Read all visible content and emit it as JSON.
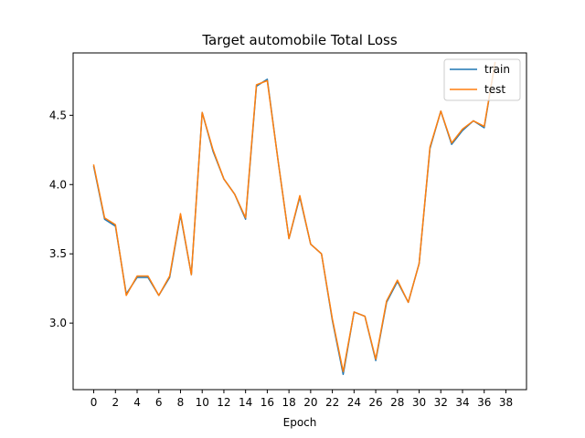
{
  "chart_data": {
    "type": "line",
    "title": "Target automobile Total Loss",
    "xlabel": "Epoch",
    "ylabel": "",
    "xlim": [
      -1.9,
      39.9
    ],
    "ylim": [
      2.52,
      4.95
    ],
    "xticks": [
      0,
      2,
      4,
      6,
      8,
      10,
      12,
      14,
      16,
      18,
      20,
      22,
      24,
      26,
      28,
      30,
      32,
      34,
      36,
      38
    ],
    "yticks": [
      3.0,
      3.5,
      4.0,
      4.5
    ],
    "ytick_labels": [
      "3.0",
      "3.5",
      "4.0",
      "4.5"
    ],
    "legend_position": "top-right",
    "grid": false,
    "x": [
      0,
      1,
      2,
      3,
      4,
      5,
      6,
      7,
      8,
      9,
      10,
      11,
      12,
      13,
      14,
      15,
      16,
      17,
      18,
      19,
      20,
      21,
      22,
      23,
      24,
      25,
      26,
      27,
      28,
      29,
      30,
      31,
      32,
      33,
      34,
      35,
      36,
      37
    ],
    "series": [
      {
        "name": "train",
        "color": "#1f77b4",
        "values": [
          4.13,
          3.75,
          3.7,
          3.21,
          3.33,
          3.33,
          3.2,
          3.33,
          3.78,
          3.35,
          4.52,
          4.24,
          4.04,
          3.93,
          3.75,
          4.71,
          4.76,
          4.17,
          3.61,
          3.91,
          3.57,
          3.5,
          3.02,
          2.63,
          3.08,
          3.05,
          2.73,
          3.15,
          3.3,
          3.15,
          3.43,
          4.26,
          4.53,
          4.29,
          4.39,
          4.46,
          4.41,
          4.88
        ]
      },
      {
        "name": "test",
        "color": "#ff7f0e",
        "values": [
          4.14,
          3.76,
          3.71,
          3.2,
          3.34,
          3.34,
          3.2,
          3.34,
          3.79,
          3.35,
          4.52,
          4.25,
          4.04,
          3.93,
          3.76,
          4.72,
          4.75,
          4.17,
          3.61,
          3.92,
          3.57,
          3.5,
          3.03,
          2.65,
          3.08,
          3.05,
          2.74,
          3.16,
          3.31,
          3.15,
          3.43,
          4.27,
          4.53,
          4.3,
          4.4,
          4.46,
          4.42,
          4.88
        ]
      }
    ]
  }
}
